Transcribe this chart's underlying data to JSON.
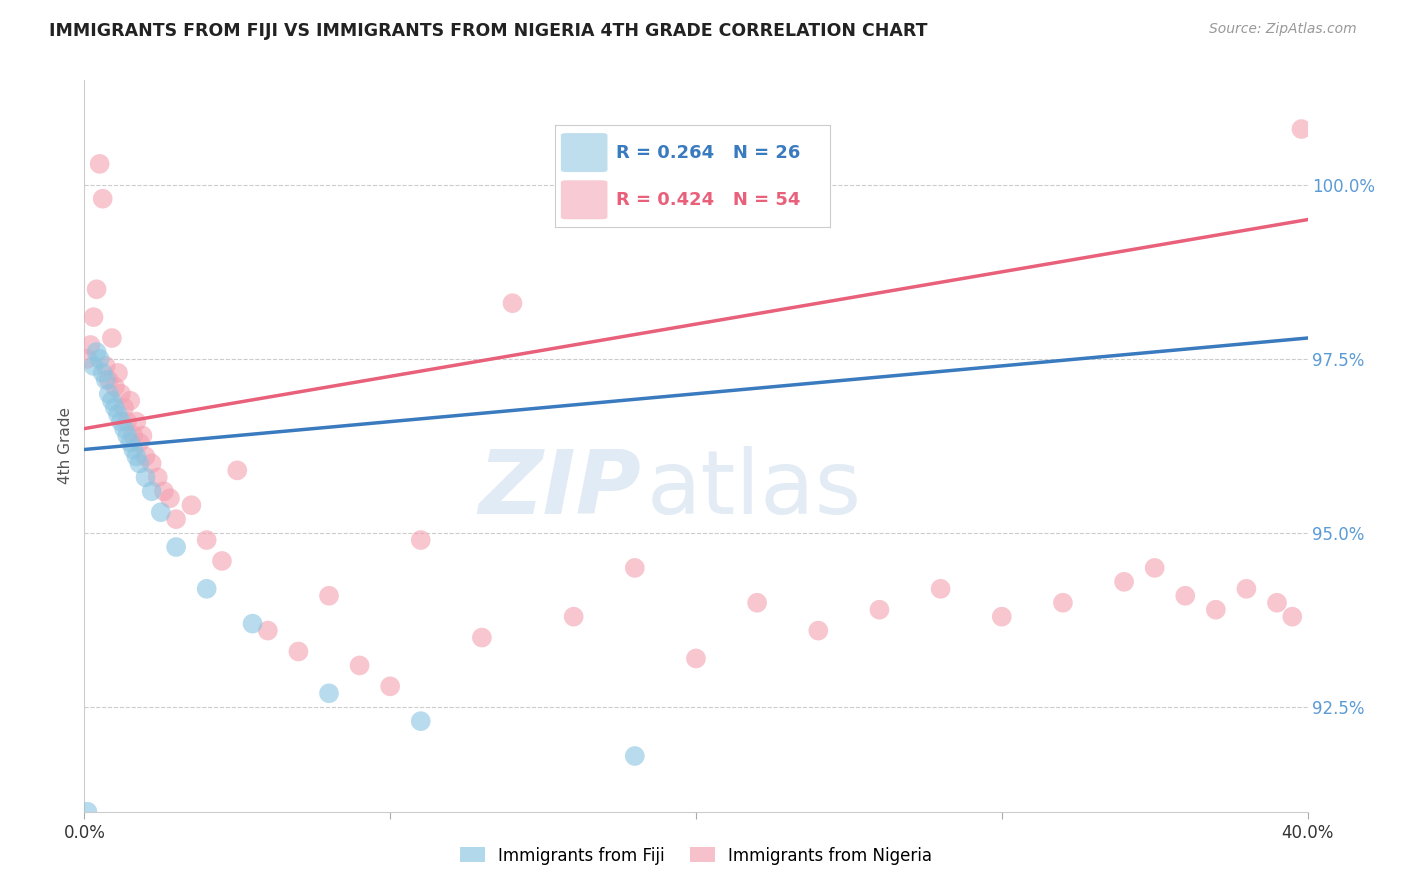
{
  "title": "IMMIGRANTS FROM FIJI VS IMMIGRANTS FROM NIGERIA 4TH GRADE CORRELATION CHART",
  "source": "Source: ZipAtlas.com",
  "ylabel": "4th Grade",
  "xlim": [
    0.0,
    0.4
  ],
  "ylim": [
    91.0,
    101.5
  ],
  "fiji_color": "#89c4e1",
  "nigeria_color": "#f4a0b0",
  "fiji_line_color": "#3a7abf",
  "nigeria_line_color": "#e8607a",
  "fiji_R": 0.264,
  "fiji_N": 26,
  "nigeria_R": 0.424,
  "nigeria_N": 54,
  "fiji_x": [
    0.001,
    0.003,
    0.004,
    0.005,
    0.006,
    0.007,
    0.008,
    0.009,
    0.01,
    0.011,
    0.012,
    0.013,
    0.014,
    0.015,
    0.016,
    0.017,
    0.018,
    0.02,
    0.022,
    0.025,
    0.03,
    0.04,
    0.055,
    0.08,
    0.11,
    0.18
  ],
  "fiji_y": [
    91.0,
    97.4,
    97.6,
    97.5,
    97.3,
    97.2,
    97.0,
    96.9,
    96.8,
    96.7,
    96.6,
    96.5,
    96.4,
    96.3,
    96.2,
    96.1,
    96.0,
    95.8,
    95.6,
    95.3,
    94.8,
    94.2,
    93.7,
    92.7,
    92.3,
    91.8
  ],
  "nigeria_x": [
    0.001,
    0.002,
    0.003,
    0.004,
    0.005,
    0.006,
    0.007,
    0.008,
    0.009,
    0.01,
    0.011,
    0.012,
    0.013,
    0.014,
    0.015,
    0.016,
    0.017,
    0.018,
    0.019,
    0.02,
    0.022,
    0.024,
    0.026,
    0.028,
    0.03,
    0.035,
    0.04,
    0.045,
    0.05,
    0.06,
    0.07,
    0.08,
    0.09,
    0.1,
    0.11,
    0.13,
    0.14,
    0.16,
    0.18,
    0.2,
    0.22,
    0.24,
    0.26,
    0.28,
    0.3,
    0.32,
    0.34,
    0.35,
    0.36,
    0.37,
    0.38,
    0.39,
    0.395,
    0.398
  ],
  "nigeria_y": [
    97.5,
    97.7,
    98.1,
    98.5,
    100.3,
    99.8,
    97.4,
    97.2,
    97.8,
    97.1,
    97.3,
    97.0,
    96.8,
    96.6,
    96.9,
    96.4,
    96.6,
    96.3,
    96.4,
    96.1,
    96.0,
    95.8,
    95.6,
    95.5,
    95.2,
    95.4,
    94.9,
    94.6,
    95.9,
    93.6,
    93.3,
    94.1,
    93.1,
    92.8,
    94.9,
    93.5,
    98.3,
    93.8,
    94.5,
    93.2,
    94.0,
    93.6,
    93.9,
    94.2,
    93.8,
    94.0,
    94.3,
    94.5,
    94.1,
    93.9,
    94.2,
    94.0,
    93.8,
    100.8
  ],
  "fiji_line_x": [
    0.0,
    0.4
  ],
  "fiji_line_y": [
    96.2,
    97.8
  ],
  "nigeria_line_x": [
    0.0,
    0.4
  ],
  "nigeria_line_y": [
    96.5,
    99.5
  ],
  "ytick_positions": [
    92.5,
    95.0,
    97.5,
    100.0
  ],
  "ytick_labels": [
    "92.5%",
    "95.0%",
    "97.5%",
    "100.0%"
  ],
  "xtick_positions": [
    0.0,
    0.1,
    0.2,
    0.3,
    0.4
  ],
  "xtick_labels": [
    "0.0%",
    "",
    "",
    "",
    "40.0%"
  ],
  "watermark_zip": "ZIP",
  "watermark_atlas": "atlas",
  "background_color": "#ffffff",
  "grid_color": "#cccccc",
  "legend_fiji_label": "Immigrants from Fiji",
  "legend_nigeria_label": "Immigrants from Nigeria"
}
